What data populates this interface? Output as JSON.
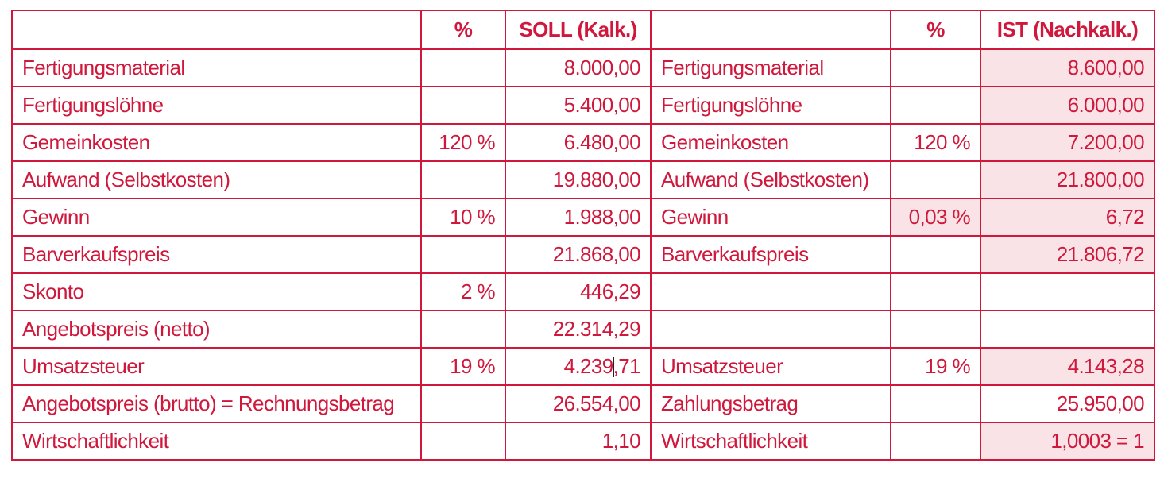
{
  "header": {
    "col_label_soll": "",
    "col_pct_soll": "%",
    "col_value_soll": "SOLL (Kalk.)",
    "col_label_ist": "",
    "col_pct_ist": "%",
    "col_value_ist": "IST (Nachkalk.)"
  },
  "rows": [
    {
      "soll_label": "Fertigungsmaterial",
      "soll_pct": "",
      "soll_value": "8.000,00",
      "ist_label": "Fertigungsmaterial",
      "ist_pct": "",
      "ist_value": "8.600,00"
    },
    {
      "soll_label": "Fertigungslöhne",
      "soll_pct": "",
      "soll_value": "5.400,00",
      "ist_label": "Fertigungslöhne",
      "ist_pct": "",
      "ist_value": "6.000,00"
    },
    {
      "soll_label": "Gemeinkosten",
      "soll_pct": "120 %",
      "soll_value": "6.480,00",
      "ist_label": "Gemeinkosten",
      "ist_pct": "120 %",
      "ist_value": "7.200,00"
    },
    {
      "soll_label": "Aufwand (Selbstkosten)",
      "soll_pct": "",
      "soll_value": "19.880,00",
      "ist_label": "Aufwand (Selbstkosten)",
      "ist_pct": "",
      "ist_value": "21.800,00"
    },
    {
      "soll_label": "Gewinn",
      "soll_pct": "10 %",
      "soll_value": "1.988,00",
      "ist_label": "Gewinn",
      "ist_pct": "0,03 %",
      "ist_value": "6,72"
    },
    {
      "soll_label": "Barverkaufspreis",
      "soll_pct": "",
      "soll_value": "21.868,00",
      "ist_label": "Barverkaufspreis",
      "ist_pct": "",
      "ist_value": "21.806,72"
    },
    {
      "soll_label": "Skonto",
      "soll_pct": "2 %",
      "soll_value": "446,29",
      "ist_label": "",
      "ist_pct": "",
      "ist_value": ""
    },
    {
      "soll_label": "Angebotspreis (netto)",
      "soll_pct": "",
      "soll_value": "22.314,29",
      "ist_label": "",
      "ist_pct": "",
      "ist_value": ""
    },
    {
      "soll_label": "Umsatzsteuer",
      "soll_pct": "19 %",
      "soll_value_a": "4.239",
      "soll_value_b": ",71",
      "ist_label": "Umsatzsteuer",
      "ist_pct": "19 %",
      "ist_value": "4.143,28"
    },
    {
      "soll_label": "Angebotspreis (brutto) = Rechnungsbetrag",
      "soll_pct": "",
      "soll_value": "26.554,00",
      "ist_label": "Zahlungsbetrag",
      "ist_pct": "",
      "ist_value": "25.950,00"
    },
    {
      "soll_label": "Wirtschaftlichkeit",
      "soll_pct": "",
      "soll_value": "1,10",
      "ist_label": "Wirtschaftlichkeit",
      "ist_pct": "",
      "ist_value": "1,0003 = 1"
    }
  ],
  "colors": {
    "text": "#d0173c",
    "highlight": "#f9e3e7"
  }
}
